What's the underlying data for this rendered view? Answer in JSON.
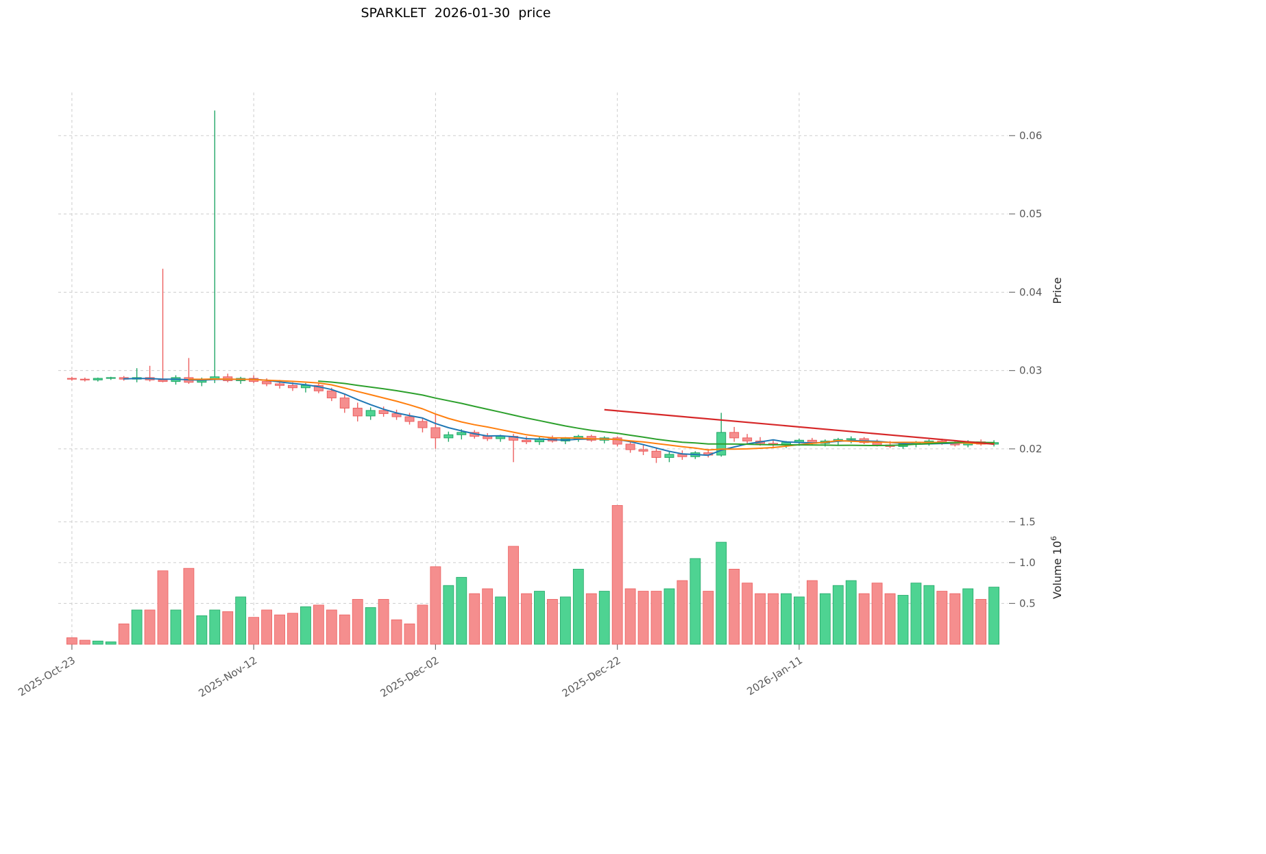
{
  "chart_data": {
    "type": "candlestick",
    "title": "SPARKLET  2026-01-30  price",
    "x_tick_labels": [
      "2025-Oct-23",
      "2025-Nov-12",
      "2025-Dec-02",
      "2025-Dec-22",
      "2026-Jan-11"
    ],
    "x_tick_indices": [
      0,
      14,
      28,
      42,
      56
    ],
    "price_axis": {
      "label": "Price",
      "ticks": [
        0.02,
        0.03,
        0.04,
        0.05,
        0.06
      ],
      "ylim": [
        0.015,
        0.0655
      ]
    },
    "volume_axis": {
      "label_base": "Volume 10",
      "label_exp": "6",
      "unit_exponent": 6,
      "ticks": [
        0.5,
        1.0,
        1.5
      ],
      "ylim": [
        0,
        1.88
      ]
    },
    "dates": [
      "2025-10-23",
      "2025-10-24",
      "2025-10-27",
      "2025-10-28",
      "2025-10-29",
      "2025-10-30",
      "2025-10-31",
      "2025-11-03",
      "2025-11-04",
      "2025-11-05",
      "2025-11-06",
      "2025-11-07",
      "2025-11-10",
      "2025-11-11",
      "2025-11-12",
      "2025-11-13",
      "2025-11-14",
      "2025-11-17",
      "2025-11-18",
      "2025-11-19",
      "2025-11-20",
      "2025-11-21",
      "2025-11-24",
      "2025-11-25",
      "2025-11-26",
      "2025-11-27",
      "2025-11-28",
      "2025-12-01",
      "2025-12-02",
      "2025-12-03",
      "2025-12-04",
      "2025-12-05",
      "2025-12-08",
      "2025-12-09",
      "2025-12-10",
      "2025-12-11",
      "2025-12-12",
      "2025-12-15",
      "2025-12-16",
      "2025-12-17",
      "2025-12-18",
      "2025-12-19",
      "2025-12-22",
      "2025-12-23",
      "2025-12-24",
      "2025-12-25",
      "2025-12-26",
      "2025-12-29",
      "2025-12-30",
      "2025-12-31",
      "2026-01-01",
      "2026-01-02",
      "2026-01-05",
      "2026-01-06",
      "2026-01-07",
      "2026-01-08",
      "2026-01-09",
      "2026-01-12",
      "2026-01-13",
      "2026-01-14",
      "2026-01-15",
      "2026-01-16",
      "2026-01-19",
      "2026-01-20",
      "2026-01-21",
      "2026-01-22",
      "2026-01-23",
      "2026-01-26",
      "2026-01-27",
      "2026-01-28",
      "2026-01-29",
      "2026-01-30"
    ],
    "ohlc": [
      [
        0.029,
        0.0292,
        0.0287,
        0.0289
      ],
      [
        0.0289,
        0.0291,
        0.0286,
        0.0288
      ],
      [
        0.0288,
        0.0291,
        0.0286,
        0.029
      ],
      [
        0.029,
        0.0292,
        0.0288,
        0.0291
      ],
      [
        0.0291,
        0.0293,
        0.0287,
        0.0289
      ],
      [
        0.0289,
        0.0303,
        0.0285,
        0.0291
      ],
      [
        0.0291,
        0.0306,
        0.0286,
        0.0288
      ],
      [
        0.0288,
        0.043,
        0.0285,
        0.0286
      ],
      [
        0.0286,
        0.0294,
        0.0282,
        0.0291
      ],
      [
        0.0291,
        0.0316,
        0.0283,
        0.0285
      ],
      [
        0.0285,
        0.0291,
        0.028,
        0.0289
      ],
      [
        0.0289,
        0.0632,
        0.0284,
        0.0292
      ],
      [
        0.0292,
        0.0296,
        0.0285,
        0.0287
      ],
      [
        0.0287,
        0.0292,
        0.0283,
        0.029
      ],
      [
        0.029,
        0.0294,
        0.0284,
        0.0286
      ],
      [
        0.0286,
        0.029,
        0.028,
        0.0283
      ],
      [
        0.0283,
        0.0288,
        0.0277,
        0.0281
      ],
      [
        0.0281,
        0.0285,
        0.0274,
        0.0278
      ],
      [
        0.0278,
        0.0284,
        0.0272,
        0.0281
      ],
      [
        0.0281,
        0.0285,
        0.0271,
        0.0274
      ],
      [
        0.0274,
        0.0278,
        0.0261,
        0.0265
      ],
      [
        0.0265,
        0.027,
        0.0246,
        0.0252
      ],
      [
        0.0252,
        0.0259,
        0.0235,
        0.0242
      ],
      [
        0.0242,
        0.0253,
        0.0237,
        0.0249
      ],
      [
        0.0249,
        0.0254,
        0.0241,
        0.0245
      ],
      [
        0.0245,
        0.025,
        0.0237,
        0.0241
      ],
      [
        0.0241,
        0.0246,
        0.0231,
        0.0235
      ],
      [
        0.0235,
        0.024,
        0.0221,
        0.0227
      ],
      [
        0.0227,
        0.0244,
        0.02,
        0.0214
      ],
      [
        0.0214,
        0.0222,
        0.0209,
        0.0218
      ],
      [
        0.0218,
        0.0225,
        0.0212,
        0.0221
      ],
      [
        0.0221,
        0.0224,
        0.0213,
        0.0216
      ],
      [
        0.0216,
        0.022,
        0.021,
        0.0213
      ],
      [
        0.0213,
        0.0218,
        0.0209,
        0.0216
      ],
      [
        0.0216,
        0.0219,
        0.0183,
        0.0211
      ],
      [
        0.0211,
        0.0216,
        0.0206,
        0.0209
      ],
      [
        0.0209,
        0.0215,
        0.0205,
        0.0213
      ],
      [
        0.0213,
        0.0217,
        0.0208,
        0.021
      ],
      [
        0.021,
        0.0215,
        0.0206,
        0.0213
      ],
      [
        0.0213,
        0.0218,
        0.0209,
        0.0216
      ],
      [
        0.0216,
        0.0218,
        0.0209,
        0.0211
      ],
      [
        0.0211,
        0.0216,
        0.0207,
        0.0214
      ],
      [
        0.0214,
        0.0216,
        0.0203,
        0.0206
      ],
      [
        0.0206,
        0.021,
        0.0195,
        0.0199
      ],
      [
        0.0199,
        0.0205,
        0.0192,
        0.0197
      ],
      [
        0.0197,
        0.0202,
        0.0182,
        0.0189
      ],
      [
        0.0189,
        0.0196,
        0.0183,
        0.0193
      ],
      [
        0.0193,
        0.0198,
        0.0186,
        0.019
      ],
      [
        0.019,
        0.0197,
        0.0187,
        0.0195
      ],
      [
        0.0195,
        0.02,
        0.0189,
        0.0192
      ],
      [
        0.0192,
        0.0246,
        0.019,
        0.0221
      ],
      [
        0.0221,
        0.0228,
        0.0209,
        0.0214
      ],
      [
        0.0214,
        0.0219,
        0.0207,
        0.021
      ],
      [
        0.021,
        0.0215,
        0.0204,
        0.0207
      ],
      [
        0.0207,
        0.0212,
        0.0202,
        0.0205
      ],
      [
        0.0205,
        0.021,
        0.0201,
        0.0208
      ],
      [
        0.0208,
        0.0213,
        0.0204,
        0.0211
      ],
      [
        0.0211,
        0.0214,
        0.0205,
        0.0207
      ],
      [
        0.0207,
        0.0212,
        0.0203,
        0.021
      ],
      [
        0.021,
        0.0214,
        0.0205,
        0.0212
      ],
      [
        0.0212,
        0.0216,
        0.0207,
        0.0213
      ],
      [
        0.0213,
        0.0215,
        0.0206,
        0.0208
      ],
      [
        0.0208,
        0.0212,
        0.0203,
        0.0205
      ],
      [
        0.0205,
        0.021,
        0.0201,
        0.0203
      ],
      [
        0.0203,
        0.0209,
        0.02,
        0.0206
      ],
      [
        0.0206,
        0.021,
        0.0202,
        0.0208
      ],
      [
        0.0208,
        0.0212,
        0.0204,
        0.021
      ],
      [
        0.021,
        0.0213,
        0.0205,
        0.0207
      ],
      [
        0.0207,
        0.0211,
        0.0203,
        0.0205
      ],
      [
        0.0205,
        0.0211,
        0.0202,
        0.0209
      ],
      [
        0.0209,
        0.0212,
        0.0204,
        0.0206
      ],
      [
        0.0206,
        0.0211,
        0.0203,
        0.0208
      ]
    ],
    "volume": [
      0.08,
      0.05,
      0.04,
      0.03,
      0.25,
      0.42,
      0.42,
      0.9,
      0.42,
      0.93,
      0.35,
      0.42,
      0.4,
      0.58,
      0.33,
      0.42,
      0.36,
      0.38,
      0.46,
      0.48,
      0.42,
      0.36,
      0.55,
      0.45,
      0.55,
      0.3,
      0.25,
      0.48,
      0.95,
      0.72,
      0.82,
      0.62,
      0.68,
      0.58,
      1.2,
      0.62,
      0.65,
      0.55,
      0.58,
      0.92,
      0.62,
      0.65,
      1.7,
      0.68,
      0.65,
      0.65,
      0.68,
      0.78,
      1.05,
      0.65,
      1.25,
      0.92,
      0.75,
      0.62,
      0.62,
      0.62,
      0.58,
      0.78,
      0.62,
      0.72,
      0.78,
      0.62,
      0.75,
      0.62,
      0.6,
      0.75,
      0.72,
      0.65,
      0.62,
      0.68,
      0.55,
      0.7
    ],
    "overlays": {
      "moving_averages": [
        {
          "name": "ma-short",
          "window": 5,
          "color": "#1f77b4"
        },
        {
          "name": "ma-mid",
          "window": 10,
          "color": "#ff7f0e"
        },
        {
          "name": "ma-long",
          "window": 20,
          "color": "#2ca02c"
        }
      ],
      "trendline": {
        "name": "resistance-trendline",
        "color": "#d62728",
        "from_index": 41,
        "from_price": 0.025,
        "to_index": 71,
        "to_price": 0.0206
      }
    },
    "grid": true,
    "legend_position": "none",
    "colors": {
      "up": "#4ed392",
      "down": "#f58e8e",
      "up_edge": "#22a767",
      "down_edge": "#ec5f5f",
      "grid": "#cccccc",
      "tick": "#707070",
      "tick_label": "#595959",
      "axis_title": "#262626"
    }
  }
}
